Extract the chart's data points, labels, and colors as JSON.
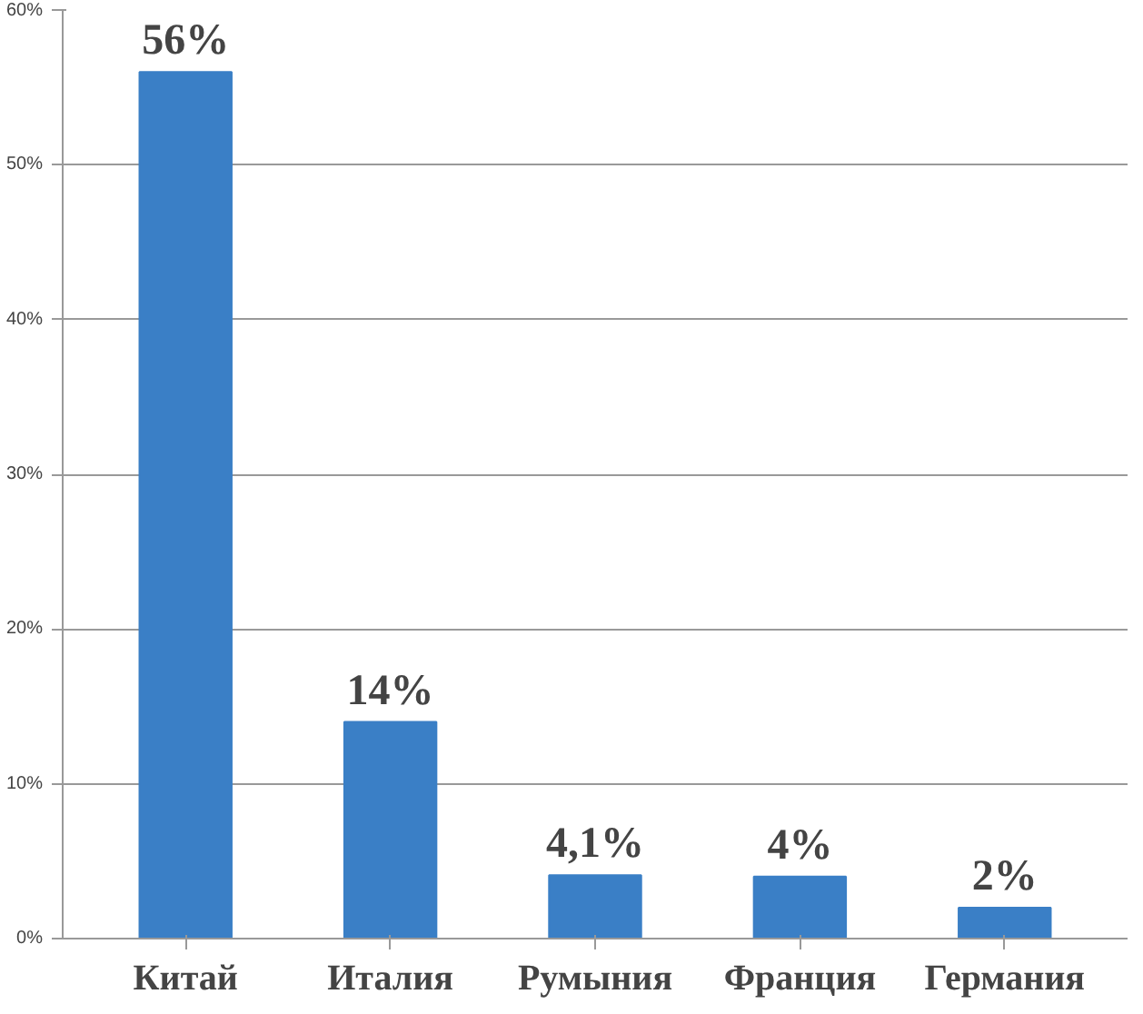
{
  "chart_data": {
    "type": "bar",
    "categories": [
      "Китай",
      "Италия",
      "Румыния",
      "Франция",
      "Германия"
    ],
    "values": [
      56,
      14,
      4.1,
      4,
      2
    ],
    "value_labels": [
      "56%",
      "14%",
      "4,1%",
      "4%",
      "2%"
    ],
    "color": "#3a7fc6",
    "ylim": [
      0,
      60
    ],
    "yticks": [
      {
        "value": 0,
        "label": "0%"
      },
      {
        "value": 10,
        "label": "10%"
      },
      {
        "value": 20,
        "label": "20%"
      },
      {
        "value": 30,
        "label": "30%"
      },
      {
        "value": 40,
        "label": "40%"
      },
      {
        "value": 50,
        "label": "50%"
      },
      {
        "value": 60,
        "label": "60%"
      }
    ],
    "grid": "y"
  }
}
